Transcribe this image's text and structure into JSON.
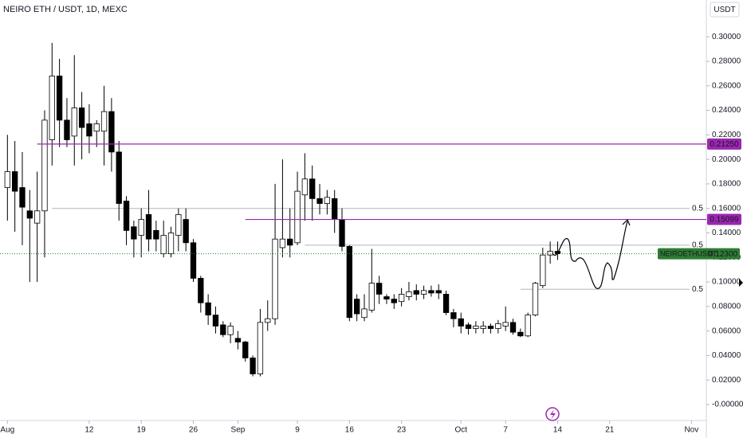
{
  "chart_data": {
    "type": "candlestick",
    "title": "NEIRO ETH / USDT, 1D, MEXC",
    "currency": "USDT",
    "x": [
      "Aug 1",
      "Aug 2",
      "Aug 3",
      "Aug 4",
      "Aug 5",
      "Aug 6",
      "Aug 7",
      "Aug 8",
      "Aug 9",
      "Aug 10",
      "Aug 11",
      "Aug 12",
      "Aug 13",
      "Aug 14",
      "Aug 15",
      "Aug 16",
      "Aug 17",
      "Aug 18",
      "Aug 19",
      "Aug 20",
      "Aug 21",
      "Aug 22",
      "Aug 23",
      "Aug 24",
      "Aug 25",
      "Aug 26",
      "Aug 27",
      "Aug 28",
      "Aug 29",
      "Aug 30",
      "Aug 31",
      "Sep 1",
      "Sep 2",
      "Sep 3",
      "Sep 4",
      "Sep 5",
      "Sep 6",
      "Sep 7",
      "Sep 8",
      "Sep 9",
      "Sep 10",
      "Sep 11",
      "Sep 12",
      "Sep 13",
      "Sep 14",
      "Sep 15",
      "Sep 16",
      "Sep 17",
      "Sep 18",
      "Sep 19",
      "Sep 20",
      "Sep 21",
      "Sep 22",
      "Sep 23",
      "Sep 24",
      "Sep 25",
      "Sep 26",
      "Sep 27",
      "Sep 28",
      "Sep 29",
      "Sep 30",
      "Oct 1",
      "Oct 2",
      "Oct 3",
      "Oct 4",
      "Oct 5",
      "Oct 6",
      "Oct 7",
      "Oct 8",
      "Oct 9",
      "Oct 10",
      "Oct 11",
      "Oct 12",
      "Oct 13",
      "Oct 14"
    ],
    "open": [
      0.177,
      0.19,
      0.177,
      0.158,
      0.148,
      0.158,
      0.216,
      0.268,
      0.232,
      0.219,
      0.242,
      0.229,
      0.223,
      0.223,
      0.239,
      0.206,
      0.166,
      0.145,
      0.138,
      0.155,
      0.142,
      0.123,
      0.123,
      0.138,
      0.151,
      0.132,
      0.103,
      0.083,
      0.073,
      0.065,
      0.057,
      0.054,
      0.051,
      0.038,
      0.025,
      0.067,
      0.07,
      0.128,
      0.135,
      0.132,
      0.171,
      0.184,
      0.168,
      0.164,
      0.168,
      0.151,
      0.129,
      0.086,
      0.071,
      0.077,
      0.099,
      0.088,
      0.086,
      0.084,
      0.088,
      0.093,
      0.09,
      0.093,
      0.093,
      0.09,
      0.075,
      0.07,
      0.065,
      0.062,
      0.062,
      0.064,
      0.062,
      0.064,
      0.067,
      0.059,
      0.056,
      0.073,
      0.097,
      0.122,
      0.125
    ],
    "high": [
      0.22,
      0.215,
      0.206,
      0.175,
      0.19,
      0.24,
      0.295,
      0.282,
      0.25,
      0.285,
      0.255,
      0.245,
      0.232,
      0.26,
      0.25,
      0.215,
      0.17,
      0.15,
      0.16,
      0.175,
      0.15,
      0.15,
      0.145,
      0.16,
      0.16,
      0.135,
      0.105,
      0.09,
      0.08,
      0.068,
      0.067,
      0.06,
      0.052,
      0.04,
      0.078,
      0.085,
      0.18,
      0.2,
      0.16,
      0.19,
      0.205,
      0.195,
      0.18,
      0.175,
      0.175,
      0.16,
      0.13,
      0.09,
      0.09,
      0.127,
      0.105,
      0.09,
      0.09,
      0.095,
      0.1,
      0.098,
      0.097,
      0.097,
      0.098,
      0.093,
      0.078,
      0.075,
      0.067,
      0.068,
      0.068,
      0.066,
      0.069,
      0.08,
      0.07,
      0.062,
      0.075,
      0.1,
      0.128,
      0.133,
      0.133
    ],
    "low": [
      0.15,
      0.141,
      0.13,
      0.1,
      0.1,
      0.12,
      0.195,
      0.21,
      0.21,
      0.195,
      0.2,
      0.205,
      0.21,
      0.195,
      0.19,
      0.15,
      0.13,
      0.12,
      0.12,
      0.125,
      0.125,
      0.12,
      0.12,
      0.125,
      0.125,
      0.1,
      0.075,
      0.065,
      0.058,
      0.055,
      0.05,
      0.045,
      0.035,
      0.023,
      0.023,
      0.06,
      0.065,
      0.12,
      0.12,
      0.13,
      0.15,
      0.15,
      0.155,
      0.155,
      0.14,
      0.125,
      0.068,
      0.068,
      0.068,
      0.075,
      0.082,
      0.082,
      0.078,
      0.08,
      0.085,
      0.085,
      0.086,
      0.088,
      0.086,
      0.073,
      0.063,
      0.058,
      0.057,
      0.058,
      0.058,
      0.058,
      0.058,
      0.06,
      0.057,
      0.055,
      0.055,
      0.072,
      0.095,
      0.115,
      0.118
    ],
    "close": [
      0.19,
      0.174,
      0.161,
      0.152,
      0.158,
      0.232,
      0.268,
      0.232,
      0.216,
      0.242,
      0.226,
      0.219,
      0.229,
      0.239,
      0.206,
      0.164,
      0.142,
      0.135,
      0.151,
      0.135,
      0.135,
      0.138,
      0.14,
      0.155,
      0.132,
      0.103,
      0.083,
      0.073,
      0.064,
      0.057,
      0.064,
      0.051,
      0.038,
      0.025,
      0.067,
      0.07,
      0.135,
      0.135,
      0.13,
      0.174,
      0.184,
      0.168,
      0.164,
      0.169,
      0.151,
      0.129,
      0.071,
      0.074,
      0.078,
      0.099,
      0.09,
      0.086,
      0.083,
      0.09,
      0.092,
      0.09,
      0.093,
      0.091,
      0.091,
      0.075,
      0.07,
      0.064,
      0.062,
      0.064,
      0.064,
      0.062,
      0.066,
      0.067,
      0.059,
      0.056,
      0.073,
      0.099,
      0.122,
      0.125,
      0.123
    ],
    "up_color": "#ffffff",
    "down_color": "#000000",
    "xlim": [
      "Jul 31",
      "Nov 3"
    ],
    "xticks": [
      {
        "value": "Aug 1",
        "label": "Aug"
      },
      {
        "value": "Aug 12",
        "label": "12"
      },
      {
        "value": "Aug 19",
        "label": "19"
      },
      {
        "value": "Aug 26",
        "label": "26"
      },
      {
        "value": "Sep 1",
        "label": "Sep"
      },
      {
        "value": "Sep 9",
        "label": "9"
      },
      {
        "value": "Sep 16",
        "label": "16"
      },
      {
        "value": "Sep 23",
        "label": "23"
      },
      {
        "value": "Oct 1",
        "label": "Oct"
      },
      {
        "value": "Oct 7",
        "label": "7"
      },
      {
        "value": "Oct 14",
        "label": "14"
      },
      {
        "value": "Oct 21",
        "label": "21"
      },
      {
        "value": "Nov 1",
        "label": "Nov"
      }
    ],
    "ylim": [
      -0.013,
      0.33
    ],
    "yticks": [
      {
        "value": 0.3,
        "label": "0.30000"
      },
      {
        "value": 0.28,
        "label": "0.28000"
      },
      {
        "value": 0.26,
        "label": "0.26000"
      },
      {
        "value": 0.24,
        "label": "0.24000"
      },
      {
        "value": 0.22,
        "label": "0.22000"
      },
      {
        "value": 0.2,
        "label": "0.20000"
      },
      {
        "value": 0.18,
        "label": "0.18000"
      },
      {
        "value": 0.16,
        "label": "0.16000"
      },
      {
        "value": 0.14,
        "label": "0.14000"
      },
      {
        "value": 0.12,
        "label": "0.12000"
      },
      {
        "value": 0.1,
        "label": "0.10000"
      },
      {
        "value": 0.08,
        "label": "0.08000"
      },
      {
        "value": 0.06,
        "label": "0.06000"
      },
      {
        "value": 0.04,
        "label": "0.04000"
      },
      {
        "value": 0.02,
        "label": "0.02000"
      },
      {
        "value": 0,
        "label": "-0.00000"
      }
    ],
    "levels": [
      {
        "value": 0.2125,
        "label": "0.21250",
        "color": "#9c27b0",
        "from": "Aug 5"
      },
      {
        "value": 0.15099,
        "label": "0.15099",
        "color": "#9c27b0",
        "from": "Sep 2"
      }
    ],
    "fib_levels": [
      {
        "value": 0.16,
        "label": "0.5",
        "from": "Aug 7"
      },
      {
        "value": 0.13,
        "label": "0.5",
        "from": "Sep 10"
      },
      {
        "value": 0.094,
        "label": "0.5",
        "from": "Oct 9"
      }
    ],
    "price_line": {
      "name": "NEIROETHUSDT",
      "value": 0.123,
      "label": "0.12300",
      "color": "#2e7d32"
    }
  }
}
